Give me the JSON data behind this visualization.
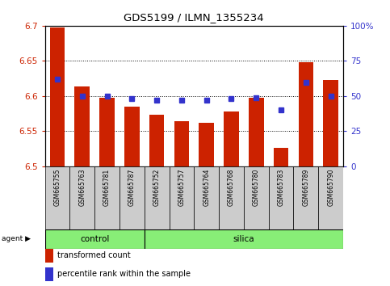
{
  "title": "GDS5199 / ILMN_1355234",
  "samples": [
    "GSM665755",
    "GSM665763",
    "GSM665781",
    "GSM665787",
    "GSM665752",
    "GSM665757",
    "GSM665764",
    "GSM665768",
    "GSM665780",
    "GSM665783",
    "GSM665789",
    "GSM665790"
  ],
  "transformed_counts": [
    6.698,
    6.614,
    6.598,
    6.585,
    6.574,
    6.564,
    6.562,
    6.578,
    6.598,
    6.527,
    6.648,
    6.623
  ],
  "percentile_ranks": [
    62,
    50,
    50,
    48,
    47,
    47,
    47,
    48,
    49,
    40,
    60,
    50
  ],
  "control_count": 4,
  "silica_count": 8,
  "ymin": 6.5,
  "ymax": 6.7,
  "yticks": [
    6.5,
    6.55,
    6.6,
    6.65,
    6.7
  ],
  "right_yticks": [
    0,
    25,
    50,
    75,
    100
  ],
  "bar_color": "#cc2200",
  "dot_color": "#3333cc",
  "control_color": "#88ee77",
  "silica_color": "#88ee77",
  "tick_bg_color": "#cccccc",
  "legend_items": [
    "transformed count",
    "percentile rank within the sample"
  ],
  "agent_label": "agent",
  "group_labels": [
    "control",
    "silica"
  ]
}
